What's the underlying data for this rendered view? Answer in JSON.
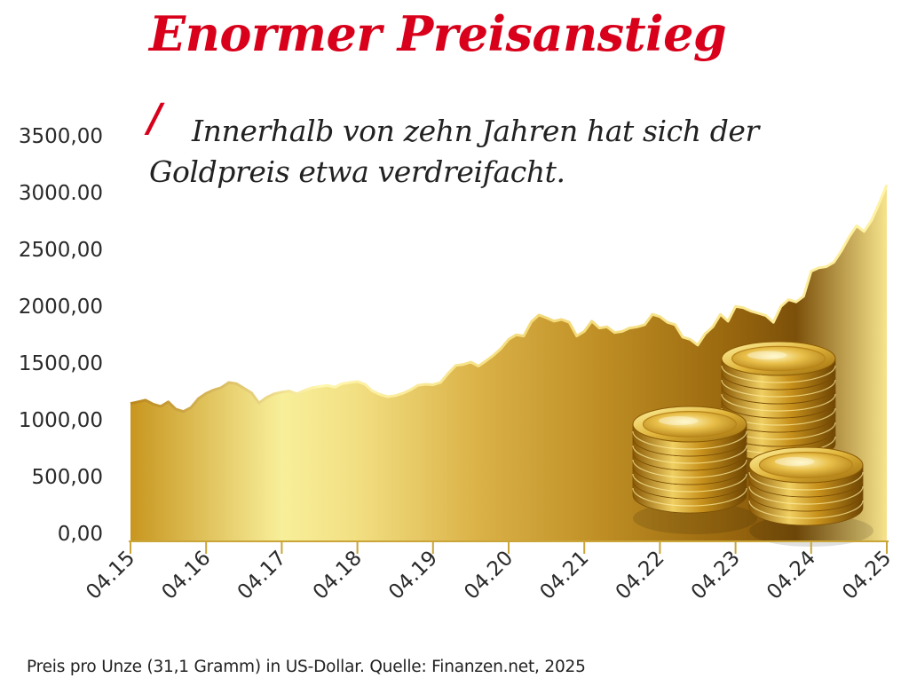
{
  "header": {
    "title": "Enormer Preisanstieg",
    "slash": "/",
    "subtitle": "Innerhalb von zehn Jahren hat sich der Goldpreis etwa verdreifacht."
  },
  "footer": {
    "source": "Preis pro Unze (31,1 Gramm) in US-Dollar. Quelle: Finanzen.net, 2025"
  },
  "colors": {
    "title_red": "#d8001a",
    "gold_dark": "#9a6b0e",
    "gold_light": "#f6e98c"
  },
  "chart_data": {
    "type": "area",
    "title": "Enormer Preisanstieg",
    "xlabel": "",
    "ylabel": "",
    "ylim": [
      0,
      3500
    ],
    "grid": false,
    "legend": "none",
    "y_ticks": [
      "0,00",
      "500,00",
      "1000,00",
      "1500,00",
      "2000,00",
      "2500,00",
      "3000.00",
      "3500,00"
    ],
    "x_ticks": [
      "04.15",
      "04.16",
      "04.17",
      "04.18",
      "04.19",
      "04.20",
      "04.21",
      "04.22",
      "04.23",
      "04.24",
      "04.25"
    ],
    "x": [
      2015.25,
      2015.35,
      2015.45,
      2015.55,
      2015.65,
      2015.75,
      2015.85,
      2015.95,
      2016.05,
      2016.15,
      2016.25,
      2016.35,
      2016.45,
      2016.55,
      2016.65,
      2016.75,
      2016.85,
      2016.95,
      2017.05,
      2017.15,
      2017.25,
      2017.35,
      2017.45,
      2017.55,
      2017.65,
      2017.75,
      2017.85,
      2017.95,
      2018.05,
      2018.15,
      2018.25,
      2018.35,
      2018.45,
      2018.55,
      2018.65,
      2018.75,
      2018.85,
      2018.95,
      2019.05,
      2019.15,
      2019.25,
      2019.35,
      2019.45,
      2019.55,
      2019.65,
      2019.75,
      2019.85,
      2019.95,
      2020.05,
      2020.15,
      2020.25,
      2020.35,
      2020.45,
      2020.55,
      2020.65,
      2020.75,
      2020.85,
      2020.95,
      2021.05,
      2021.15,
      2021.25,
      2021.35,
      2021.45,
      2021.55,
      2021.65,
      2021.75,
      2021.85,
      2021.95,
      2022.05,
      2022.15,
      2022.25,
      2022.35,
      2022.45,
      2022.55,
      2022.65,
      2022.75,
      2022.85,
      2022.95,
      2023.05,
      2023.15,
      2023.25,
      2023.35,
      2023.45,
      2023.55,
      2023.65,
      2023.75,
      2023.85,
      2023.95,
      2024.05,
      2024.15,
      2024.25,
      2024.35,
      2024.45,
      2024.55,
      2024.65,
      2024.75,
      2024.85,
      2024.95,
      2025.05,
      2025.15,
      2025.25
    ],
    "series": [
      {
        "values": [
          1135,
          1150,
          1165,
          1130,
          1110,
          1150,
          1085,
          1065,
          1100,
          1180,
          1225,
          1255,
          1275,
          1320,
          1310,
          1270,
          1230,
          1140,
          1190,
          1220,
          1235,
          1245,
          1220,
          1250,
          1275,
          1285,
          1295,
          1280,
          1310,
          1320,
          1330,
          1305,
          1245,
          1215,
          1195,
          1205,
          1225,
          1255,
          1295,
          1305,
          1300,
          1320,
          1400,
          1470,
          1480,
          1500,
          1465,
          1510,
          1560,
          1620,
          1700,
          1740,
          1730,
          1855,
          1915,
          1890,
          1860,
          1875,
          1850,
          1730,
          1770,
          1860,
          1800,
          1810,
          1760,
          1770,
          1800,
          1810,
          1830,
          1920,
          1900,
          1850,
          1830,
          1720,
          1700,
          1650,
          1750,
          1810,
          1920,
          1860,
          1990,
          1980,
          1950,
          1930,
          1910,
          1850,
          1990,
          2050,
          2030,
          2080,
          2300,
          2330,
          2340,
          2380,
          2480,
          2600,
          2700,
          2650,
          2750,
          2900,
          3060
        ]
      }
    ]
  }
}
